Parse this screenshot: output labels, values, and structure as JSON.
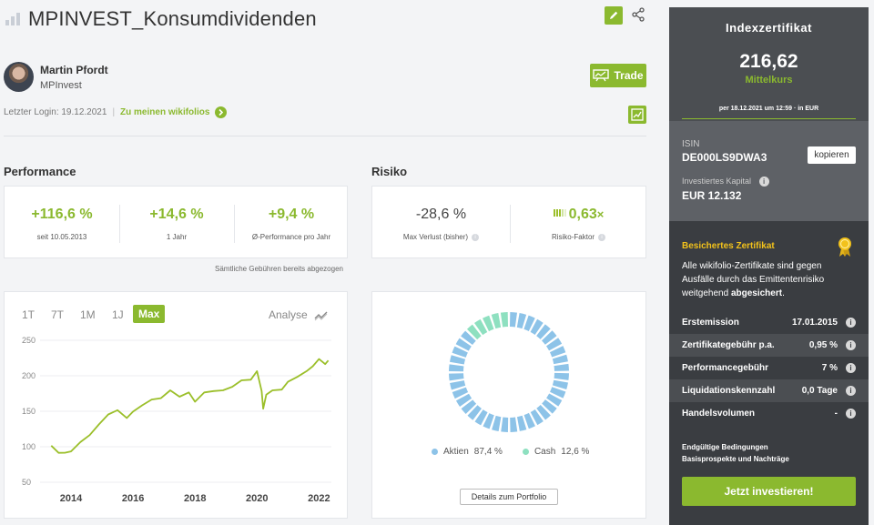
{
  "header": {
    "title": "MPINVEST_Konsumdividenden",
    "author_name": "Martin Pfordt",
    "author_org": "MPInvest",
    "last_login": "Letzter Login: 19.12.2021",
    "wikifolios_link": "Zu meinen wikifolios",
    "trade_label": "Trade"
  },
  "performance": {
    "title": "Performance",
    "items": [
      {
        "value": "+116,6 %",
        "label": "seit 10.05.2013"
      },
      {
        "value": "+14,6 %",
        "label": "1 Jahr"
      },
      {
        "value": "+9,4 %",
        "label": "Ø-Performance pro Jahr"
      }
    ],
    "fees_note": "Sämtliche Gebühren bereits abgezogen"
  },
  "risk": {
    "title": "Risiko",
    "max_loss": {
      "value": "-28,6 %",
      "label": "Max Verlust (bisher)"
    },
    "factor": {
      "value": "0,63",
      "unit": "×",
      "label": "Risiko-Faktor"
    }
  },
  "chart": {
    "ranges": [
      "1T",
      "7T",
      "1M",
      "1J",
      "Max"
    ],
    "active_range": "Max",
    "analyse_label": "Analyse",
    "line_color": "#9bbf2a"
  },
  "chart_data": {
    "type": "line",
    "x": [
      2013.36,
      2013.6,
      2013.8,
      2014.0,
      2014.3,
      2014.6,
      2014.9,
      2015.2,
      2015.5,
      2015.8,
      2016.0,
      2016.3,
      2016.6,
      2016.9,
      2017.2,
      2017.5,
      2017.8,
      2018.0,
      2018.3,
      2018.6,
      2018.9,
      2019.2,
      2019.5,
      2019.8,
      2020.0,
      2020.15,
      2020.2,
      2020.3,
      2020.5,
      2020.8,
      2021.0,
      2021.3,
      2021.6,
      2021.8,
      2022.0,
      2022.2,
      2022.3
    ],
    "y": [
      100,
      93,
      90,
      95,
      105,
      118,
      130,
      147,
      150,
      142,
      148,
      160,
      165,
      170,
      178,
      172,
      175,
      165,
      175,
      180,
      178,
      186,
      192,
      196,
      205,
      180,
      152,
      175,
      178,
      182,
      190,
      200,
      205,
      215,
      222,
      218,
      220
    ],
    "xticks": [
      "2014",
      "2016",
      "2018",
      "2020",
      "2022"
    ],
    "xtick_values": [
      2014,
      2016,
      2018,
      2020,
      2022
    ],
    "yticks": [
      "50",
      "100",
      "150",
      "200",
      "250"
    ],
    "ytick_values": [
      50,
      100,
      150,
      200,
      250
    ],
    "xlim": [
      2013.0,
      2022.4
    ],
    "ylim": [
      50,
      250
    ],
    "grid": true
  },
  "allocation": {
    "type": "pie",
    "slices": [
      {
        "name": "Aktien",
        "value": 87.4,
        "label": "87,4 %",
        "color": "#8dc3e8"
      },
      {
        "name": "Cash",
        "value": 12.6,
        "label": "12,6 %",
        "color": "#8ee0c0"
      }
    ],
    "details_button": "Details zum Portfolio"
  },
  "sidebar": {
    "product_type": "Indexzertifikat",
    "price": "216,62",
    "price_label": "Mittelkurs",
    "price_date": "per 18.12.2021 um 12:59 · in EUR",
    "isin_label": "ISIN",
    "isin": "DE000LS9DWA3",
    "copy_label": "kopieren",
    "capital_label": "Investiertes Kapital",
    "capital": "EUR 12.132",
    "secured_title": "Besichertes Zertifikat",
    "secured_text_1": "Alle wikifolio-Zertifikate sind gegen Ausfälle durch das Emittentenrisiko weitgehend",
    "secured_text_bold": "abgesichert",
    "secured_text_2": ".",
    "rows": [
      {
        "label": "Erstemission",
        "value": "17.01.2015"
      },
      {
        "label": "Zertifikategebühr p.a.",
        "value": "0,95 %"
      },
      {
        "label": "Performancegebühr",
        "value": "7 %"
      },
      {
        "label": "Liquidationskennzahl",
        "value": "0,0 Tage"
      },
      {
        "label": "Handelsvolumen",
        "value": "-"
      }
    ],
    "link_terms": "Endgültige Bedingungen",
    "link_prospectus": "Basisprospekte und Nachträge",
    "invest_button": "Jetzt investieren!",
    "accent": "#8bb92f"
  }
}
